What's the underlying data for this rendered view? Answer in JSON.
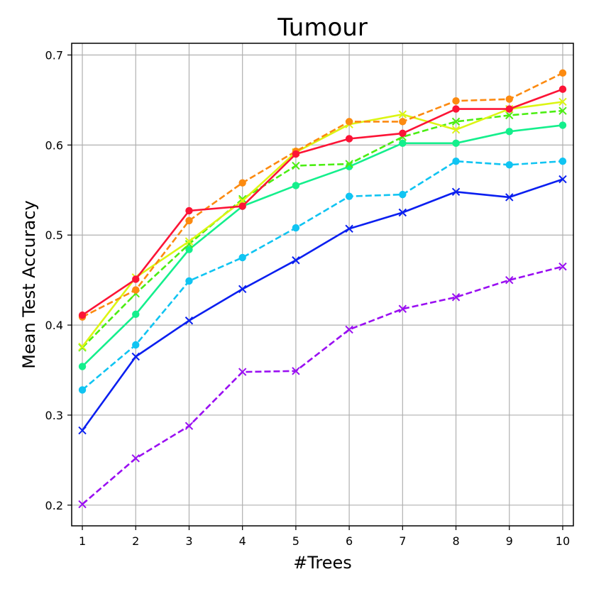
{
  "chart_data": {
    "type": "line",
    "title": "Tumour",
    "xlabel": "#Trees",
    "ylabel": "Mean Test Accuracy",
    "x": [
      1,
      2,
      3,
      4,
      5,
      6,
      7,
      8,
      9,
      10
    ],
    "xlim": [
      0.8,
      10.2
    ],
    "ylim": [
      0.177,
      0.713
    ],
    "xticks": [
      1,
      2,
      3,
      4,
      5,
      6,
      7,
      8,
      9,
      10
    ],
    "yticks": [
      0.2,
      0.3,
      0.4,
      0.5,
      0.6,
      0.7
    ],
    "ytick_labels": [
      "0.2",
      "0.3",
      "0.4",
      "0.5",
      "0.6",
      "0.7"
    ],
    "grid": true,
    "series": [
      {
        "id": "s1",
        "color": "#9a0ff2",
        "linestyle": "dashed",
        "marker": "x",
        "values": [
          0.201,
          0.252,
          0.288,
          0.348,
          0.349,
          0.395,
          0.418,
          0.431,
          0.45,
          0.465
        ]
      },
      {
        "id": "s2",
        "color": "#0a1ff0",
        "linestyle": "solid",
        "marker": "x",
        "values": [
          0.283,
          0.365,
          0.405,
          0.44,
          0.472,
          0.507,
          0.525,
          0.548,
          0.542,
          0.562
        ]
      },
      {
        "id": "s3",
        "color": "#10c4f2",
        "linestyle": "dashed",
        "marker": "circle",
        "values": [
          0.328,
          0.378,
          0.449,
          0.475,
          0.508,
          0.543,
          0.545,
          0.582,
          0.578,
          0.582
        ]
      },
      {
        "id": "s4",
        "color": "#14ef8c",
        "linestyle": "solid",
        "marker": "circle",
        "values": [
          0.354,
          0.412,
          0.484,
          0.532,
          0.555,
          0.576,
          0.602,
          0.602,
          0.615,
          0.622
        ]
      },
      {
        "id": "s5",
        "color": "#4bee12",
        "linestyle": "dashed",
        "marker": "x",
        "values": [
          0.375,
          0.435,
          0.49,
          0.54,
          0.577,
          0.579,
          0.609,
          0.626,
          0.633,
          0.638
        ]
      },
      {
        "id": "s6",
        "color": "#dcf513",
        "linestyle": "solid",
        "marker": "x",
        "values": [
          0.376,
          0.453,
          0.493,
          0.538,
          0.592,
          0.623,
          0.634,
          0.617,
          0.64,
          0.648
        ]
      },
      {
        "id": "s7",
        "color": "#fc8a10",
        "linestyle": "dashed",
        "marker": "circle",
        "values": [
          0.409,
          0.439,
          0.516,
          0.558,
          0.593,
          0.626,
          0.626,
          0.649,
          0.651,
          0.68
        ]
      },
      {
        "id": "s8",
        "color": "#fc1436",
        "linestyle": "solid",
        "marker": "circle",
        "values": [
          0.411,
          0.451,
          0.527,
          0.532,
          0.59,
          0.607,
          0.613,
          0.64,
          0.64,
          0.662
        ]
      }
    ]
  }
}
